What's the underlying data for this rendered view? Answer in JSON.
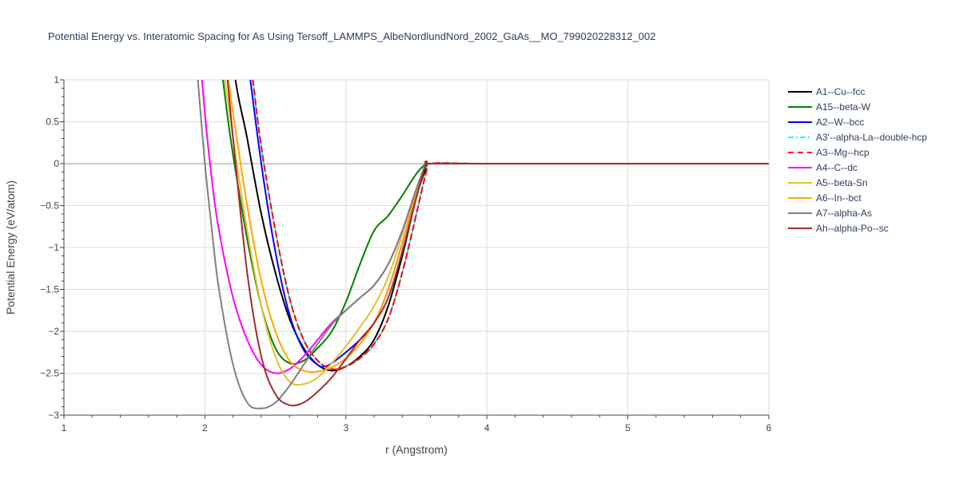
{
  "chart_data": {
    "type": "line",
    "title": "Potential Energy vs. Interatomic Spacing for As Using Tersoff_LAMMPS_AlbeNordlundNord_2002_GaAs__MO_799020228312_002",
    "xlabel": "r (Angstrom)",
    "ylabel": "Potential Energy (eV/atom)",
    "xlim": [
      1,
      6
    ],
    "ylim": [
      -3,
      1
    ],
    "xticks": [
      1,
      2,
      3,
      4,
      5,
      6
    ],
    "yticks": [
      1,
      0.5,
      0,
      -0.5,
      -1,
      -1.5,
      -2,
      -2.5,
      -3
    ],
    "ytick_labels": [
      "1",
      "0.5",
      "0",
      "−0.5",
      "−1",
      "−1.5",
      "−2",
      "−2.5",
      "−3"
    ],
    "grid": true,
    "legend_position": "right",
    "series": [
      {
        "name": "A1--Cu--fcc",
        "color": "#000000",
        "dash": "solid",
        "x": [
          2.1,
          2.2,
          2.3,
          2.4,
          2.5,
          2.6,
          2.7,
          2.8,
          2.9,
          3.0,
          3.1,
          3.2,
          3.3,
          3.4,
          3.5,
          3.57,
          3.6,
          4.0,
          5.0,
          6.0
        ],
        "y": [
          3.0,
          1.2,
          0.3,
          -0.6,
          -1.3,
          -1.85,
          -2.2,
          -2.4,
          -2.47,
          -2.42,
          -2.3,
          -2.1,
          -1.7,
          -1.1,
          -0.4,
          -0.05,
          0,
          0,
          0,
          0
        ]
      },
      {
        "name": "A15--beta-W",
        "color": "#008000",
        "dash": "solid",
        "x": [
          2.1,
          2.15,
          2.2,
          2.3,
          2.4,
          2.5,
          2.6,
          2.7,
          2.8,
          2.9,
          3.0,
          3.1,
          3.2,
          3.3,
          3.4,
          3.5,
          3.57,
          3.6,
          4.0,
          5.0,
          6.0
        ],
        "y": [
          1.4,
          0.7,
          0.1,
          -0.9,
          -1.7,
          -2.2,
          -2.38,
          -2.35,
          -2.2,
          -2.0,
          -1.65,
          -1.2,
          -0.8,
          -0.62,
          -0.38,
          -0.12,
          0,
          0,
          0,
          0,
          0
        ]
      },
      {
        "name": "A2--W--bcc",
        "color": "#0000ff",
        "dash": "solid",
        "x": [
          2.3,
          2.4,
          2.5,
          2.6,
          2.7,
          2.8,
          2.85,
          2.9,
          3.0,
          3.1,
          3.2,
          3.3,
          3.4,
          3.5,
          3.57,
          3.6,
          4.0,
          5.0,
          6.0
        ],
        "y": [
          1.3,
          0.0,
          -1.05,
          -1.8,
          -2.22,
          -2.4,
          -2.42,
          -2.38,
          -2.25,
          -2.1,
          -1.9,
          -1.5,
          -0.95,
          -0.35,
          0,
          0,
          0,
          0,
          0
        ]
      },
      {
        "name": "A3'--alpha-La--double-hcp",
        "color": "#00ffff",
        "dash": "dashdot",
        "x": [
          2.34,
          2.4,
          2.5,
          2.6,
          2.7,
          2.8,
          2.9,
          3.0,
          3.1,
          3.2,
          3.3,
          3.4,
          3.5,
          3.57,
          3.6,
          4.0,
          5.0,
          6.0
        ],
        "y": [
          1.0,
          0.2,
          -0.8,
          -1.6,
          -2.1,
          -2.35,
          -2.45,
          -2.42,
          -2.32,
          -2.15,
          -1.85,
          -1.3,
          -0.6,
          -0.1,
          0,
          0,
          0,
          0
        ]
      },
      {
        "name": "A3--Mg--hcp",
        "color": "#ff0000",
        "dash": "dash",
        "x": [
          2.34,
          2.4,
          2.5,
          2.6,
          2.7,
          2.8,
          2.9,
          3.0,
          3.1,
          3.2,
          3.3,
          3.4,
          3.5,
          3.57,
          3.6,
          4.0,
          5.0,
          6.0
        ],
        "y": [
          1.0,
          0.2,
          -0.8,
          -1.6,
          -2.1,
          -2.35,
          -2.45,
          -2.42,
          -2.32,
          -2.15,
          -1.85,
          -1.3,
          -0.6,
          -0.1,
          0,
          0,
          0,
          0
        ]
      },
      {
        "name": "A4--C--dc",
        "color": "#ff00ff",
        "dash": "solid",
        "x": [
          1.95,
          2.0,
          2.05,
          2.1,
          2.2,
          2.3,
          2.4,
          2.5,
          2.6,
          2.7,
          2.8,
          2.9,
          3.0,
          3.1,
          3.2,
          3.3,
          3.4,
          3.5,
          3.57,
          3.6,
          4.0,
          5.0,
          6.0
        ],
        "y": [
          1.6,
          0.6,
          -0.2,
          -0.8,
          -1.6,
          -2.1,
          -2.4,
          -2.5,
          -2.45,
          -2.3,
          -2.1,
          -1.9,
          -1.75,
          -1.6,
          -1.45,
          -1.2,
          -0.8,
          -0.3,
          0,
          0,
          0,
          0,
          0
        ]
      },
      {
        "name": "A5--beta-Sn",
        "color": "#e6bf33",
        "dash": "solid",
        "x": [
          2.1,
          2.2,
          2.3,
          2.4,
          2.5,
          2.6,
          2.7,
          2.8,
          2.9,
          3.0,
          3.1,
          3.2,
          3.3,
          3.4,
          3.5,
          3.57,
          3.6,
          4.0,
          5.0,
          6.0
        ],
        "y": [
          1.5,
          0.3,
          -0.8,
          -1.7,
          -2.3,
          -2.6,
          -2.63,
          -2.55,
          -2.38,
          -2.18,
          -1.95,
          -1.7,
          -1.35,
          -0.85,
          -0.3,
          0,
          0,
          0,
          0,
          0
        ]
      },
      {
        "name": "A6--In--bct",
        "color": "#ffa500",
        "dash": "solid",
        "x": [
          2.15,
          2.2,
          2.3,
          2.4,
          2.5,
          2.6,
          2.7,
          2.8,
          2.9,
          3.0,
          3.1,
          3.2,
          3.3,
          3.4,
          3.5,
          3.57,
          3.6,
          4.0,
          5.0,
          6.0
        ],
        "y": [
          1.2,
          0.6,
          -0.5,
          -1.4,
          -2.0,
          -2.35,
          -2.47,
          -2.48,
          -2.43,
          -2.32,
          -2.15,
          -1.9,
          -1.5,
          -0.95,
          -0.35,
          0,
          0,
          0,
          0,
          0
        ]
      },
      {
        "name": "A7--alpha-As",
        "color": "#808080",
        "dash": "solid",
        "x": [
          1.95,
          2.0,
          2.05,
          2.1,
          2.2,
          2.3,
          2.4,
          2.5,
          2.6,
          2.7,
          2.8,
          2.9,
          3.0,
          3.1,
          3.2,
          3.3,
          3.4,
          3.5,
          3.57,
          3.6,
          4.0,
          5.0,
          6.0
        ],
        "y": [
          1.0,
          0.0,
          -0.8,
          -1.5,
          -2.4,
          -2.85,
          -2.92,
          -2.85,
          -2.65,
          -2.4,
          -2.15,
          -1.92,
          -1.75,
          -1.6,
          -1.45,
          -1.2,
          -0.8,
          -0.3,
          0,
          0,
          0,
          0,
          0
        ]
      },
      {
        "name": "Ah--alpha-Po--sc",
        "color": "#a52a2a",
        "dash": "solid",
        "x": [
          2.15,
          2.2,
          2.3,
          2.4,
          2.5,
          2.6,
          2.7,
          2.8,
          2.9,
          3.0,
          3.1,
          3.2,
          3.3,
          3.4,
          3.5,
          3.57,
          3.6,
          4.0,
          5.0,
          6.0
        ],
        "y": [
          1.2,
          0.3,
          -1.3,
          -2.3,
          -2.75,
          -2.88,
          -2.85,
          -2.72,
          -2.55,
          -2.33,
          -2.1,
          -1.9,
          -1.6,
          -1.05,
          -0.4,
          0,
          0,
          0,
          0,
          0
        ]
      }
    ]
  }
}
